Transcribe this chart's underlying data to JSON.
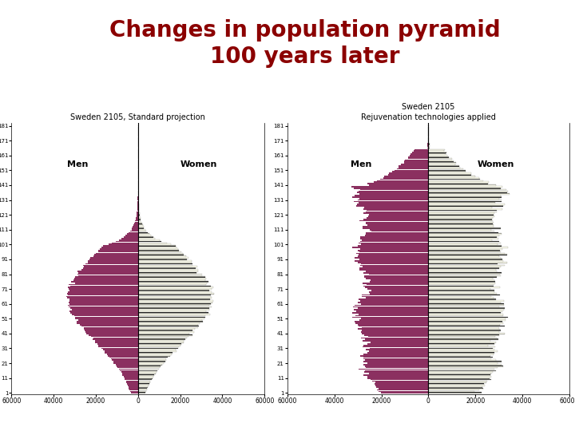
{
  "title": "Changes in population pyramid\n100 years later",
  "title_color": "#8B0000",
  "title_fontsize": 20,
  "background_color": "#FFFFFF",
  "left_sidebar_color": "#7B0020",
  "bottom_bar_color": "#A0A8B0",
  "subtitle1": "Sweden 2105, Standard projection",
  "subtitle2": "Sweden 2105\nRejuvenation technologies applied",
  "men_color": "#8B3060",
  "women_facecolor": "#FFFFF0",
  "women_edgecolor": "#222222",
  "women_hatch": "---",
  "xlim": 60000,
  "xtick_labels": [
    "60000",
    "40000",
    "20000",
    "0",
    "20000",
    "40000",
    "60000"
  ]
}
